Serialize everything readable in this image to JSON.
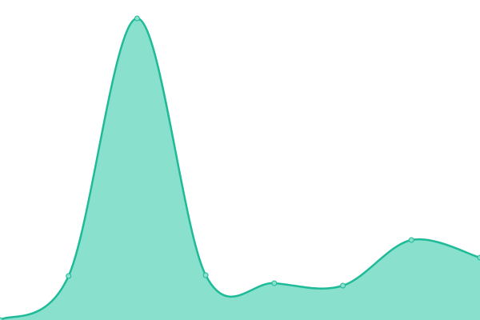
{
  "chart_data": {
    "type": "area",
    "categories": [
      null,
      null,
      null,
      null,
      null,
      null,
      null,
      null
    ],
    "values": [
      0,
      55,
      377,
      56,
      46,
      43,
      100,
      78
    ],
    "color": "#1fba98",
    "fill": "#88e0cd",
    "ylim": [
      0,
      400
    ]
  }
}
